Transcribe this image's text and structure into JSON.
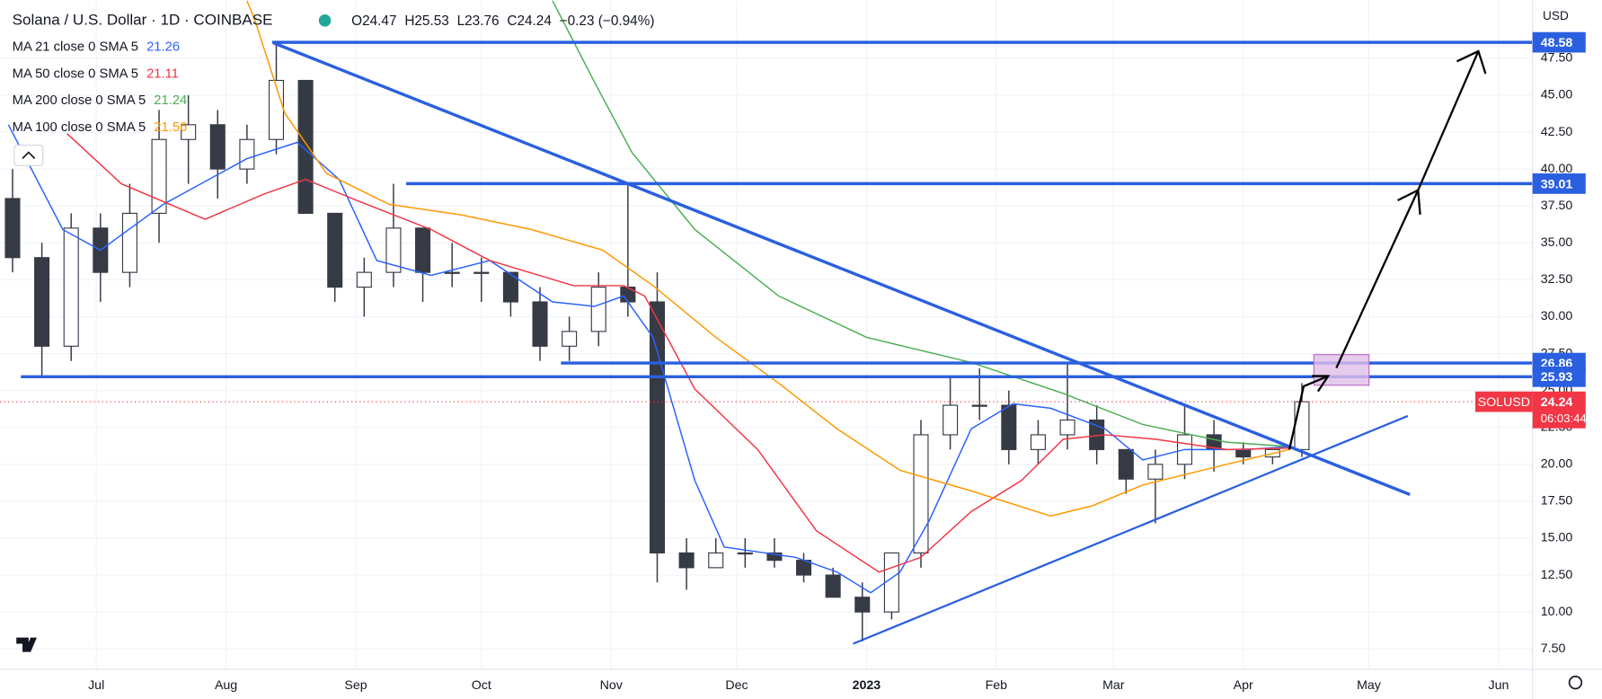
{
  "chart_data": {
    "type": "candlestick",
    "title": "Solana / U.S. Dollar · 1D · COINBASE",
    "quote": [
      "O24.47",
      "H25.53",
      "L23.76",
      "C24.24",
      "−0.23 (−0.94%)"
    ],
    "currency": "USD",
    "xlim": [
      0,
      366.1
    ],
    "xticks": [
      {
        "value": 23,
        "label": "Jul"
      },
      {
        "value": 54,
        "label": "Aug"
      },
      {
        "value": 85,
        "label": "Sep"
      },
      {
        "value": 115,
        "label": "Oct"
      },
      {
        "value": 146,
        "label": "Nov"
      },
      {
        "value": 176,
        "label": "Dec"
      },
      {
        "value": 207,
        "label": "2023"
      },
      {
        "value": 238,
        "label": "Feb"
      },
      {
        "value": 266,
        "label": "Mar"
      },
      {
        "value": 297,
        "label": "Apr"
      },
      {
        "value": 327,
        "label": "May"
      },
      {
        "value": 358,
        "label": "Jun"
      }
    ],
    "ylim": [
      6.12,
      51.44
    ],
    "yticks": [
      {
        "value": 7.5,
        "label": "7.50"
      },
      {
        "value": 10,
        "label": "10.00"
      },
      {
        "value": 12.5,
        "label": "12.50"
      },
      {
        "value": 15,
        "label": "15.00"
      },
      {
        "value": 17.5,
        "label": "17.50"
      },
      {
        "value": 20,
        "label": "20.00"
      },
      {
        "value": 22.5,
        "label": "22.50"
      },
      {
        "value": 25,
        "label": "25.00"
      },
      {
        "value": 27.5,
        "label": "27.50"
      },
      {
        "value": 30,
        "label": "30.00"
      },
      {
        "value": 32.5,
        "label": "32.50"
      },
      {
        "value": 35,
        "label": "35.00"
      },
      {
        "value": 37.5,
        "label": "37.50"
      },
      {
        "value": 40,
        "label": "40.00"
      },
      {
        "value": 42.5,
        "label": "42.50"
      },
      {
        "value": 45,
        "label": "45.00"
      },
      {
        "value": 47.5,
        "label": "47.50"
      }
    ],
    "candles": {
      "x": [
        3,
        10,
        17,
        24,
        31,
        38,
        45,
        52,
        59,
        66,
        73,
        80,
        87,
        94,
        101,
        108,
        115,
        122,
        129,
        136,
        143,
        150,
        157,
        164,
        171,
        178,
        185,
        192,
        199,
        206,
        213,
        220,
        227,
        234,
        241,
        248,
        255,
        262,
        269,
        276,
        283,
        290,
        297,
        304,
        311
      ],
      "open": [
        38,
        34,
        28,
        36,
        33,
        37,
        42,
        43,
        40,
        42,
        46,
        37,
        32,
        33,
        36,
        33,
        33,
        33,
        31,
        28,
        29,
        32,
        31,
        14,
        13,
        14,
        14,
        13.5,
        12.5,
        11,
        10,
        14,
        22,
        24,
        24,
        21,
        22,
        23,
        21,
        19,
        20,
        22,
        21,
        20.5,
        21
      ],
      "high": [
        40,
        35,
        37,
        37,
        39,
        44,
        45,
        44,
        43,
        48.5,
        46,
        37,
        34,
        39,
        36,
        35,
        34,
        33,
        32,
        30,
        33,
        39,
        33,
        15,
        15,
        15,
        15,
        14,
        13,
        12,
        14,
        23,
        26,
        26.5,
        25,
        23,
        26.9,
        24,
        21,
        21,
        24,
        23,
        21.5,
        21,
        25.5
      ],
      "low": [
        33,
        26,
        27,
        31,
        32,
        35,
        39,
        38,
        39,
        41,
        38,
        31,
        30,
        32,
        31,
        32,
        31,
        30,
        27,
        27,
        28,
        30,
        12,
        11.5,
        13,
        13,
        13,
        12,
        11,
        8,
        9.5,
        13,
        21,
        23,
        20,
        20,
        21,
        20,
        18,
        16,
        19,
        19.5,
        20,
        20,
        20.5
      ],
      "close": [
        34,
        28,
        36,
        33,
        37,
        42,
        43,
        40,
        42,
        46,
        37,
        32,
        33,
        36,
        33,
        33,
        33,
        31,
        28,
        29,
        32,
        31,
        14,
        13,
        14,
        14,
        13.5,
        12.5,
        11,
        10,
        14,
        22,
        24,
        24,
        21,
        22,
        23,
        21,
        19,
        20,
        22,
        21,
        20.5,
        21,
        24.24
      ]
    },
    "series": [
      {
        "name": "MA 21 close 0 SMA 5",
        "last": 21.26,
        "color": "#2962ff",
        "x": [
          2,
          15,
          24,
          39,
          59,
          71,
          81,
          90,
          103,
          117,
          132,
          142,
          149,
          156,
          166,
          173,
          190,
          200,
          208,
          215,
          222,
          232,
          242,
          251,
          264,
          273,
          283,
          298,
          308
        ],
        "values": [
          43,
          35.9,
          34.5,
          37.6,
          40.7,
          41.8,
          39.3,
          33.8,
          32.8,
          33.8,
          31,
          30.7,
          31.4,
          28.6,
          18.9,
          14.4,
          13.7,
          12.7,
          11.3,
          12.7,
          16.2,
          22.4,
          24.1,
          23.8,
          22.4,
          20.3,
          21,
          21,
          21.2
        ]
      },
      {
        "name": "MA 50 close 0 SMA 5",
        "last": 21.11,
        "color": "#f23645",
        "x": [
          16,
          29,
          49,
          63,
          73,
          85,
          103,
          117,
          137,
          149,
          154,
          166,
          181,
          195,
          210,
          220,
          232,
          244,
          254,
          264,
          276,
          293,
          308
        ],
        "values": [
          42.4,
          39,
          36.6,
          38.3,
          39.3,
          37.9,
          35.9,
          33.8,
          32.1,
          32.1,
          31.4,
          25.1,
          21,
          15.5,
          12.7,
          13.7,
          16.8,
          18.9,
          21.7,
          22,
          21.7,
          21,
          21.1
        ]
      },
      {
        "name": "MA 200 close 0 SMA 5",
        "last": 21.24,
        "color": "#4caf50",
        "x": [
          132,
          142,
          151,
          166,
          186,
          207,
          232,
          254,
          273,
          293,
          308
        ],
        "values": [
          51.4,
          45.9,
          41.1,
          35.9,
          31.4,
          28.6,
          26.9,
          24.8,
          22.7,
          21.5,
          21.2
        ]
      },
      {
        "name": "MA 100 close 0 SMA 5",
        "last": 21.56,
        "color": "#ff9800",
        "x": [
          59,
          61,
          68,
          78,
          93,
          110,
          127,
          144,
          156,
          171,
          186,
          200,
          215,
          232,
          251,
          261,
          273,
          293,
          308
        ],
        "values": [
          51.4,
          50,
          43.8,
          39.7,
          37.6,
          36.9,
          35.9,
          34.5,
          32.1,
          28.6,
          25.5,
          22.4,
          19.6,
          18.2,
          16.5,
          17.2,
          18.6,
          20,
          21
        ]
      }
    ],
    "levels": [
      {
        "value": 48.58,
        "start": 65
      },
      {
        "value": 39.01,
        "start": 97
      },
      {
        "value": 26.86,
        "start": 134
      },
      {
        "value": 25.93,
        "start": 5
      }
    ],
    "last_price": 24.24,
    "last_label": "SOLUSD",
    "countdown": "06:03:44"
  }
}
